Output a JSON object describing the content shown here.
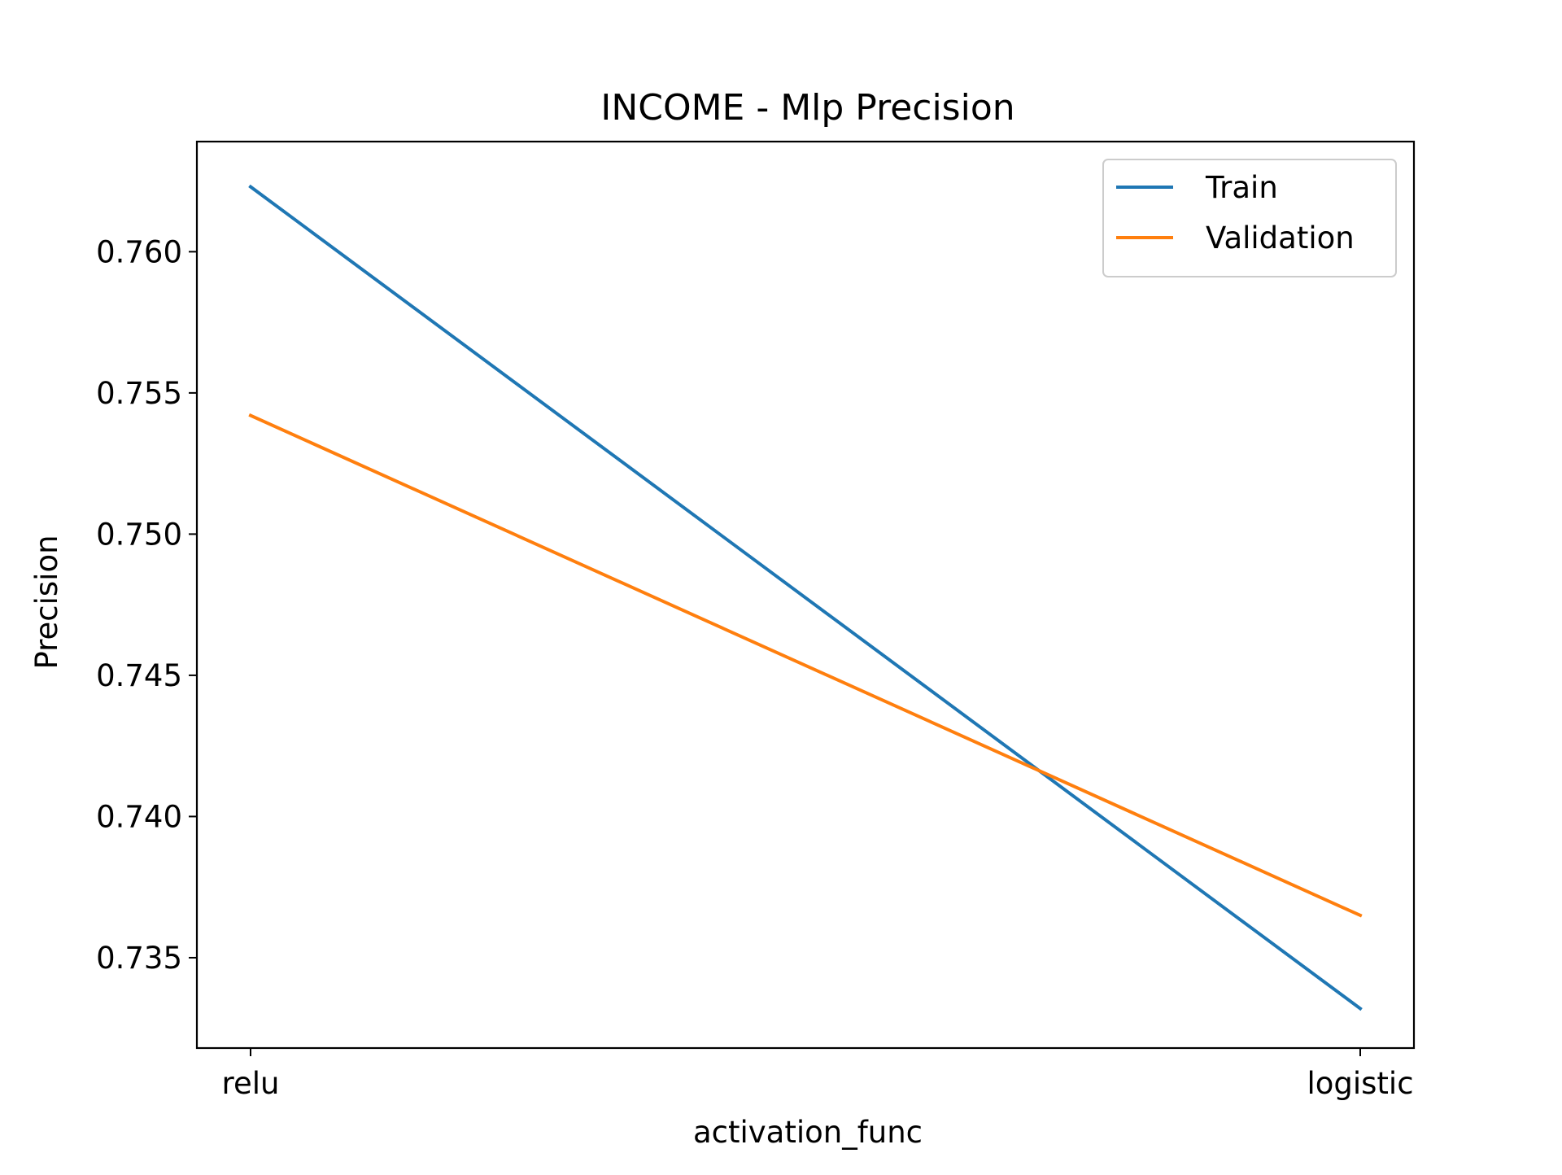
{
  "chart_data": {
    "type": "line",
    "title": "INCOME - Mlp Precision",
    "xlabel": "activation_func",
    "ylabel": "Precision",
    "categories": [
      "relu",
      "logistic"
    ],
    "ylim": [
      0.7318,
      0.7639
    ],
    "yticks": [
      "0.735",
      "0.740",
      "0.745",
      "0.750",
      "0.755",
      "0.760"
    ],
    "grid": false,
    "legend_position": "top-right",
    "series": [
      {
        "name": "Train",
        "color": "#1f77b4",
        "values": [
          0.7623,
          0.7332
        ]
      },
      {
        "name": "Validation",
        "color": "#ff7f0e",
        "values": [
          0.7542,
          0.7365
        ]
      }
    ]
  }
}
